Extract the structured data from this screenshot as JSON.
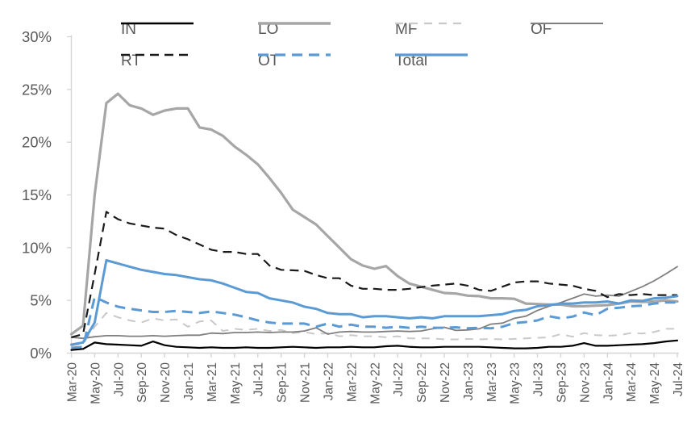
{
  "chart_data": {
    "type": "line",
    "title": "",
    "xlabel": "",
    "ylabel": "",
    "ylim": [
      0,
      30
    ],
    "grid": false,
    "legend_position": "top",
    "text_color": "#595959",
    "axis_color": "#D6D6D6",
    "accent_blue": "#5B9BD5",
    "yticks": [
      {
        "value": 0,
        "label": "0%"
      },
      {
        "value": 5,
        "label": "5%"
      },
      {
        "value": 10,
        "label": "10%"
      },
      {
        "value": 15,
        "label": "15%"
      },
      {
        "value": 20,
        "label": "20%"
      },
      {
        "value": 25,
        "label": "25%"
      },
      {
        "value": 30,
        "label": "30%"
      }
    ],
    "x_tick_every": 2,
    "months": [
      "Mar-20",
      "Apr-20",
      "May-20",
      "Jun-20",
      "Jul-20",
      "Aug-20",
      "Sep-20",
      "Oct-20",
      "Nov-20",
      "Dec-20",
      "Jan-21",
      "Feb-21",
      "Mar-21",
      "Apr-21",
      "May-21",
      "Jun-21",
      "Jul-21",
      "Aug-21",
      "Sep-21",
      "Oct-21",
      "Nov-21",
      "Dec-21",
      "Jan-22",
      "Feb-22",
      "Mar-22",
      "Apr-22",
      "May-22",
      "Jun-22",
      "Jul-22",
      "Aug-22",
      "Sep-22",
      "Oct-22",
      "Nov-22",
      "Dec-22",
      "Jan-23",
      "Feb-23",
      "Mar-23",
      "Apr-23",
      "May-23",
      "Jun-23",
      "Jul-23",
      "Aug-23",
      "Sep-23",
      "Oct-23",
      "Nov-23",
      "Dec-23",
      "Jan-24",
      "Feb-24",
      "Mar-24",
      "Apr-24",
      "May-24",
      "Jun-24",
      "Jul-24"
    ],
    "series": [
      {
        "name": "IN",
        "color": "#000000",
        "width": 2.2,
        "dash": null,
        "values": [
          0.3,
          0.4,
          1.0,
          0.85,
          0.8,
          0.75,
          0.7,
          1.1,
          0.75,
          0.6,
          0.55,
          0.5,
          0.55,
          0.5,
          0.5,
          0.55,
          0.5,
          0.5,
          0.55,
          0.6,
          0.55,
          0.5,
          0.55,
          0.55,
          0.6,
          0.55,
          0.55,
          0.65,
          0.7,
          0.6,
          0.55,
          0.55,
          0.6,
          0.6,
          0.6,
          0.6,
          0.55,
          0.5,
          0.45,
          0.45,
          0.5,
          0.6,
          0.6,
          0.7,
          0.95,
          0.7,
          0.7,
          0.75,
          0.8,
          0.85,
          0.95,
          1.1,
          1.2
        ]
      },
      {
        "name": "LO",
        "color": "#A6A6A6",
        "width": 3.2,
        "dash": null,
        "values": [
          1.8,
          2.6,
          15.0,
          23.7,
          24.6,
          23.5,
          23.2,
          22.6,
          23.0,
          23.2,
          23.2,
          21.4,
          21.2,
          20.6,
          19.6,
          18.8,
          17.9,
          16.6,
          15.2,
          13.6,
          12.9,
          12.2,
          11.1,
          10.0,
          8.9,
          8.3,
          8.0,
          8.25,
          7.3,
          6.6,
          6.3,
          6.0,
          5.7,
          5.65,
          5.45,
          5.4,
          5.2,
          5.2,
          5.15,
          4.7,
          4.65,
          4.6,
          4.6,
          4.45,
          4.45,
          4.5,
          4.55,
          4.7,
          4.9,
          4.85,
          4.9,
          5.0,
          4.9
        ]
      },
      {
        "name": "MF",
        "color": "#C9C9C9",
        "width": 2.0,
        "dash": [
          10,
          8
        ],
        "values": [
          0.7,
          0.9,
          2.5,
          3.8,
          3.4,
          3.1,
          2.9,
          3.3,
          3.1,
          3.2,
          2.5,
          3.0,
          3.1,
          2.1,
          2.3,
          2.2,
          2.3,
          2.1,
          2.2,
          1.9,
          2.0,
          1.8,
          1.9,
          1.6,
          1.7,
          1.6,
          1.6,
          1.5,
          1.6,
          1.4,
          1.4,
          1.4,
          1.3,
          1.3,
          1.35,
          1.3,
          1.35,
          1.3,
          1.35,
          1.4,
          1.45,
          1.5,
          1.8,
          1.55,
          1.9,
          1.7,
          1.65,
          1.7,
          1.9,
          1.85,
          2.0,
          2.3,
          2.3
        ]
      },
      {
        "name": "OF",
        "color": "#7F7F7F",
        "width": 1.8,
        "dash": null,
        "values": [
          1.5,
          1.4,
          1.55,
          1.65,
          1.65,
          1.6,
          1.6,
          1.65,
          1.6,
          1.65,
          1.7,
          1.7,
          1.9,
          1.85,
          1.95,
          1.95,
          2.0,
          1.95,
          2.0,
          2.0,
          2.1,
          2.4,
          1.8,
          2.0,
          2.05,
          2.0,
          2.0,
          2.05,
          2.1,
          2.05,
          2.1,
          2.3,
          2.45,
          2.15,
          2.2,
          2.3,
          2.75,
          2.85,
          3.3,
          3.5,
          4.05,
          4.45,
          4.8,
          5.2,
          5.6,
          5.4,
          5.5,
          5.4,
          5.85,
          6.3,
          6.85,
          7.5,
          8.2
        ]
      },
      {
        "name": "RT",
        "color": "#1A1A1A",
        "width": 2.2,
        "dash": [
          11,
          7
        ],
        "values": [
          1.5,
          1.8,
          7.5,
          13.4,
          12.7,
          12.3,
          12.1,
          11.9,
          11.8,
          11.2,
          10.8,
          10.3,
          9.8,
          9.6,
          9.6,
          9.4,
          9.4,
          8.3,
          7.9,
          7.85,
          7.8,
          7.4,
          7.1,
          7.1,
          6.4,
          6.1,
          6.1,
          6.0,
          6.0,
          6.1,
          6.25,
          6.4,
          6.5,
          6.6,
          6.4,
          6.0,
          5.9,
          6.3,
          6.7,
          6.8,
          6.8,
          6.6,
          6.5,
          6.4,
          6.1,
          5.9,
          5.3,
          5.6,
          5.5,
          5.6,
          5.5,
          5.5,
          5.5
        ]
      },
      {
        "name": "OT",
        "color": "#5B9BD5",
        "width": 3.0,
        "dash": [
          13,
          8
        ],
        "values": [
          0.5,
          0.6,
          5.3,
          4.8,
          4.4,
          4.2,
          4.05,
          3.9,
          3.9,
          4.0,
          3.9,
          3.8,
          3.95,
          3.8,
          3.65,
          3.4,
          3.1,
          2.9,
          2.8,
          2.8,
          2.8,
          2.5,
          2.8,
          2.5,
          2.7,
          2.5,
          2.5,
          2.4,
          2.5,
          2.4,
          2.5,
          2.4,
          2.4,
          2.45,
          2.35,
          2.4,
          2.35,
          2.5,
          2.85,
          2.95,
          3.1,
          3.5,
          3.3,
          3.45,
          3.85,
          3.6,
          4.2,
          4.3,
          4.45,
          4.5,
          4.7,
          4.8,
          4.8
        ]
      },
      {
        "name": "Total",
        "color": "#5B9BD5",
        "width": 3.0,
        "dash": null,
        "values": [
          0.8,
          1.0,
          2.9,
          8.8,
          8.5,
          8.2,
          7.9,
          7.7,
          7.5,
          7.4,
          7.2,
          7.0,
          6.9,
          6.6,
          6.2,
          5.8,
          5.7,
          5.2,
          5.0,
          4.8,
          4.4,
          4.2,
          3.8,
          3.7,
          3.7,
          3.4,
          3.5,
          3.5,
          3.4,
          3.3,
          3.4,
          3.3,
          3.5,
          3.5,
          3.5,
          3.5,
          3.6,
          3.7,
          4.0,
          4.1,
          4.45,
          4.55,
          4.7,
          4.7,
          4.8,
          4.8,
          4.9,
          4.7,
          5.0,
          4.95,
          5.2,
          5.25,
          5.4
        ]
      }
    ],
    "legend": {
      "rows": [
        [
          "IN",
          "LO",
          "MF",
          "OF"
        ],
        [
          "RT",
          "OT",
          "Total"
        ]
      ]
    }
  }
}
